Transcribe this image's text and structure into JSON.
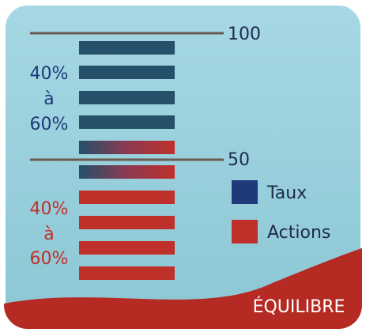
{
  "scale": {
    "top": "100",
    "middle": "50"
  },
  "upper_range": {
    "from": "40%",
    "word": "à",
    "to": "60%"
  },
  "lower_range": {
    "from": "40%",
    "word": "à",
    "to": "60%"
  },
  "legend": [
    {
      "name": "Taux",
      "color": "#1e3a7a"
    },
    {
      "name": "Actions",
      "color": "#c0302a"
    }
  ],
  "footer": "ÉQUILIBRE"
}
